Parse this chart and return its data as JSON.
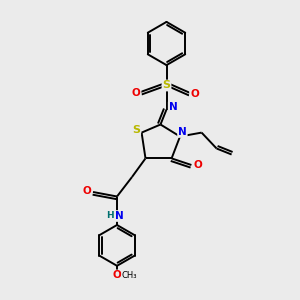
{
  "background_color": "#ebebeb",
  "bond_color": "#000000",
  "atom_colors": {
    "S": "#b8b800",
    "N": "#0000ee",
    "O": "#ee0000",
    "H": "#007070",
    "C": "#000000"
  },
  "figsize": [
    3.0,
    3.0
  ],
  "dpi": 100,
  "xlim": [
    0,
    10
  ],
  "ylim": [
    0,
    10
  ]
}
